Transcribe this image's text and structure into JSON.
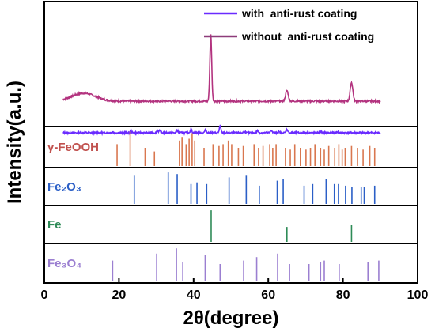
{
  "chart_data": {
    "type": "line",
    "xlabel": "2θ(degree)",
    "ylabel": "Intensity(a.u.)",
    "xlim": [
      0,
      100
    ],
    "x_ticks": [
      0,
      20,
      40,
      60,
      80,
      100
    ],
    "legend": {
      "placement": "top-right",
      "entries": [
        {
          "label": "with  anti-rust coating",
          "color": "#6a2bff"
        },
        {
          "label": "without  anti-rust coating",
          "color": "#8e3c7a"
        }
      ]
    },
    "series": [
      {
        "name": "without  anti-rust coating",
        "color": "#b3337f",
        "baseline_level": 0.3,
        "peaks": [
          [
            10.5,
            0.12,
            4.5
          ],
          [
            44.6,
            1.0,
            0.35
          ],
          [
            65.0,
            0.16,
            0.5
          ],
          [
            82.3,
            0.28,
            0.5
          ]
        ]
      },
      {
        "name": "with  anti-rust coating",
        "color": "#6a2bff",
        "baseline_level": 0.0,
        "peaks": [
          [
            18.2,
            0.05,
            0.3
          ],
          [
            23.2,
            0.06,
            0.3
          ],
          [
            30.3,
            0.12,
            0.3
          ],
          [
            30.9,
            0.1,
            0.3
          ],
          [
            35.6,
            0.14,
            0.3
          ],
          [
            39.3,
            0.2,
            0.3
          ],
          [
            43.2,
            0.16,
            0.3
          ],
          [
            47.1,
            0.35,
            0.3
          ],
          [
            53.6,
            0.08,
            0.3
          ],
          [
            57.1,
            0.12,
            0.3
          ],
          [
            60.8,
            0.14,
            0.3
          ],
          [
            62.7,
            0.06,
            0.3
          ],
          [
            65.0,
            0.2,
            0.3
          ],
          [
            74.0,
            0.05,
            0.3
          ],
          [
            78.5,
            0.05,
            0.3
          ]
        ]
      }
    ],
    "reference_panels": [
      {
        "label": "γ-FeOOH",
        "label_color": "#c0504d",
        "line_color": "#d9774f",
        "positions": [
          19.5,
          23.0,
          27.0,
          29.5,
          36.2,
          36.9,
          38.0,
          38.8,
          39.6,
          40.3,
          42.8,
          45.2,
          46.8,
          47.9,
          49.3,
          50.2,
          52.0,
          53.3,
          56.2,
          57.4,
          58.6,
          60.4,
          61.2,
          62.1,
          64.6,
          65.9,
          67.1,
          68.6,
          70.1,
          71.3,
          72.5,
          74.0,
          75.0,
          76.2,
          77.8,
          78.9,
          79.8,
          80.6,
          82.3,
          83.9,
          85.4,
          87.2,
          88.5
        ],
        "heights": [
          0.6,
          0.95,
          0.5,
          0.4,
          0.7,
          0.8,
          0.6,
          0.75,
          0.9,
          0.7,
          0.5,
          0.6,
          0.55,
          0.6,
          0.7,
          0.6,
          0.5,
          0.55,
          0.6,
          0.5,
          0.55,
          0.6,
          0.5,
          0.6,
          0.5,
          0.45,
          0.6,
          0.5,
          0.45,
          0.5,
          0.6,
          0.5,
          0.45,
          0.55,
          0.5,
          0.6,
          0.45,
          0.5,
          0.55,
          0.5,
          0.45,
          0.55,
          0.5
        ]
      },
      {
        "label": "Fe₂O₃",
        "label_color": "#2b5fc7",
        "line_color": "#2b5fc7",
        "positions": [
          24.1,
          33.2,
          35.6,
          39.3,
          40.9,
          43.5,
          49.5,
          54.1,
          57.6,
          62.4,
          64.0,
          69.6,
          71.9,
          75.5,
          77.7,
          78.8,
          80.7,
          82.4,
          84.9,
          85.7,
          88.5
        ],
        "heights": [
          0.85,
          0.95,
          0.9,
          0.6,
          0.65,
          0.6,
          0.8,
          0.85,
          0.55,
          0.7,
          0.75,
          0.55,
          0.6,
          0.75,
          0.6,
          0.6,
          0.55,
          0.5,
          0.5,
          0.5,
          0.55
        ]
      },
      {
        "label": "Fe",
        "label_color": "#2e8b57",
        "line_color": "#2e8b57",
        "positions": [
          44.7,
          65.0,
          82.3
        ],
        "heights": [
          0.95,
          0.45,
          0.5
        ]
      },
      {
        "label": "Fe₃O₄",
        "label_color": "#9b7fd1",
        "line_color": "#9b7fd1",
        "positions": [
          18.3,
          30.1,
          35.4,
          37.1,
          43.1,
          47.1,
          53.4,
          56.9,
          62.5,
          65.7,
          70.9,
          74.0,
          75.0,
          79.0,
          86.7,
          89.6
        ],
        "heights": [
          0.6,
          0.8,
          0.95,
          0.55,
          0.75,
          0.5,
          0.6,
          0.7,
          0.8,
          0.5,
          0.5,
          0.55,
          0.6,
          0.5,
          0.55,
          0.6
        ]
      }
    ]
  }
}
